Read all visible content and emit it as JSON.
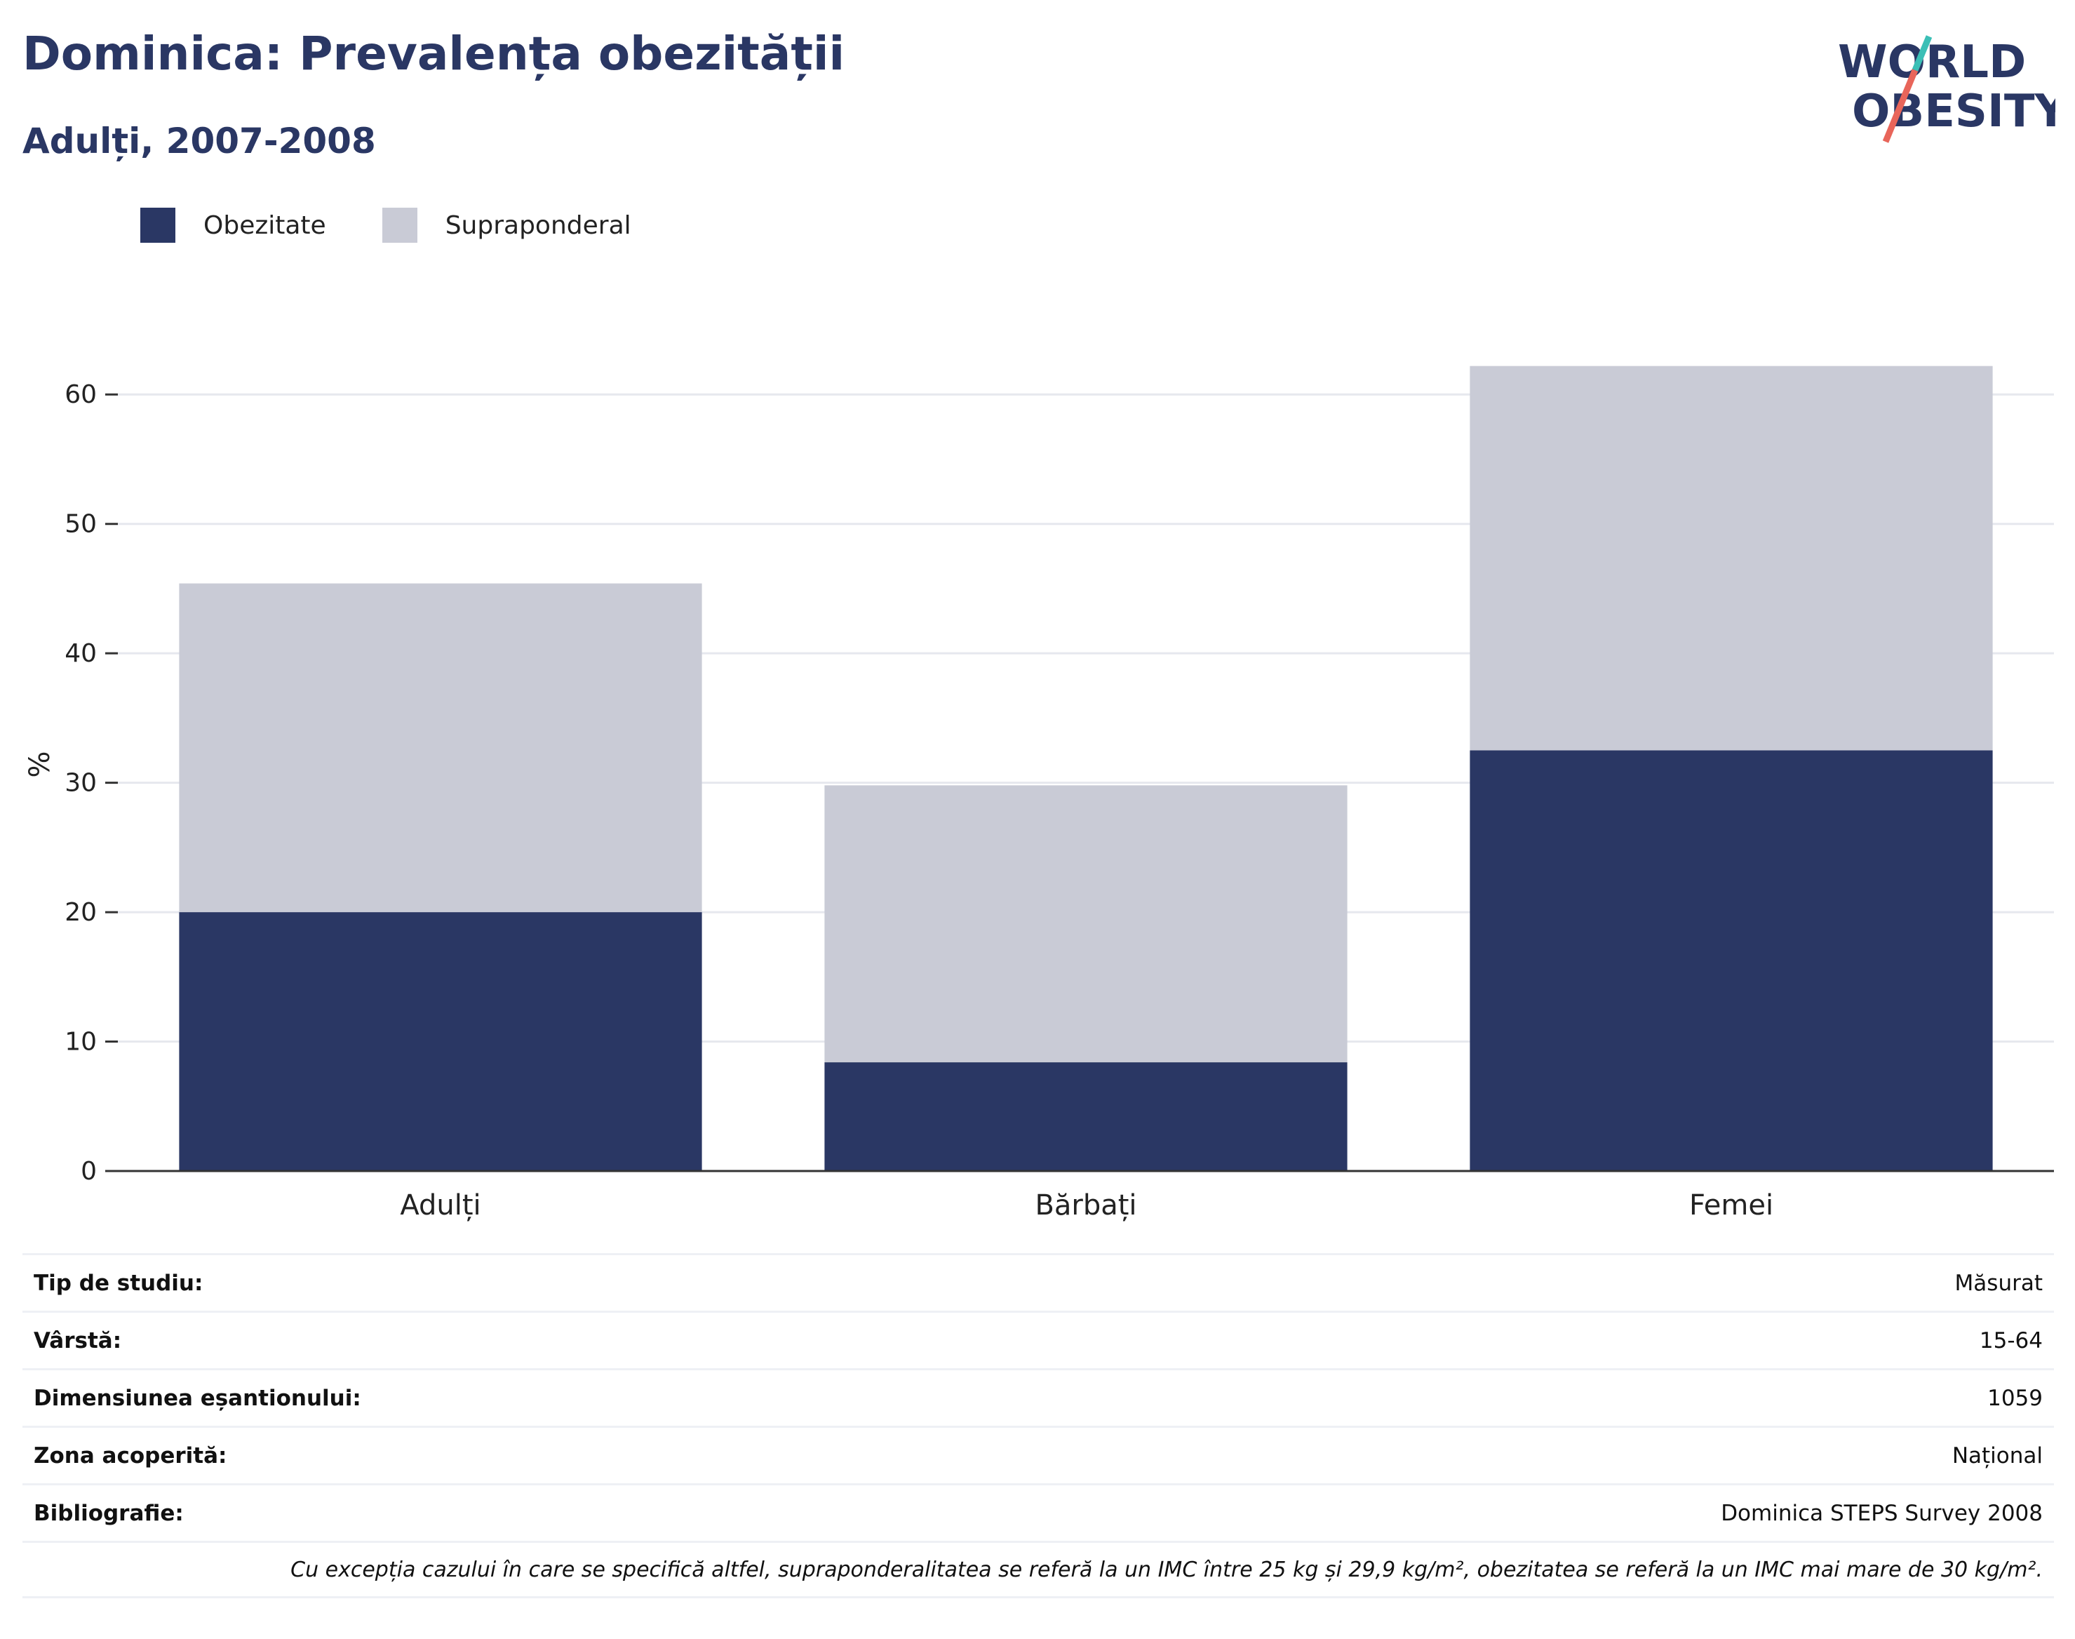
{
  "header": {
    "title": "Dominica: Prevalența obezității",
    "subtitle": "Adulți, 2007-2008"
  },
  "logo": {
    "line1": "WORLD",
    "line2": "OBESITY",
    "colors": {
      "text": "#2a3764",
      "slash_top": "#3bbfb6",
      "slash_bottom": "#e8655a"
    }
  },
  "colors": {
    "obezitate": "#2a3764",
    "supraponderal": "#c9cbd6",
    "grid": "#e6e8ee",
    "axis": "#333333"
  },
  "chart_data": {
    "type": "bar",
    "stacked": true,
    "categories": [
      "Adulți",
      "Bărbați",
      "Femei"
    ],
    "series": [
      {
        "name": "Obezitate",
        "values": [
          20.0,
          8.4,
          32.5
        ]
      },
      {
        "name": "Supraponderal",
        "values": [
          25.4,
          21.4,
          29.7
        ]
      }
    ],
    "ylabel": "%",
    "ylim": [
      0,
      65
    ],
    "yticks": [
      0,
      10,
      20,
      30,
      40,
      50,
      60
    ],
    "grid": true,
    "legend": "top-left"
  },
  "info": {
    "rows": [
      {
        "key": "Tip de studiu:",
        "value": "Măsurat"
      },
      {
        "key": "Vârstă:",
        "value": "15-64"
      },
      {
        "key": "Dimensiunea eșantionului:",
        "value": "1059"
      },
      {
        "key": "Zona acoperită:",
        "value": "Național"
      },
      {
        "key": "Bibliografie:",
        "value": "Dominica STEPS Survey 2008"
      }
    ],
    "note": "Cu excepția cazului în care se specifică altfel, supraponderalitatea se referă la un IMC între 25 kg și 29,9 kg/m², obezitatea se referă la un IMC mai mare de 30 kg/m²."
  }
}
